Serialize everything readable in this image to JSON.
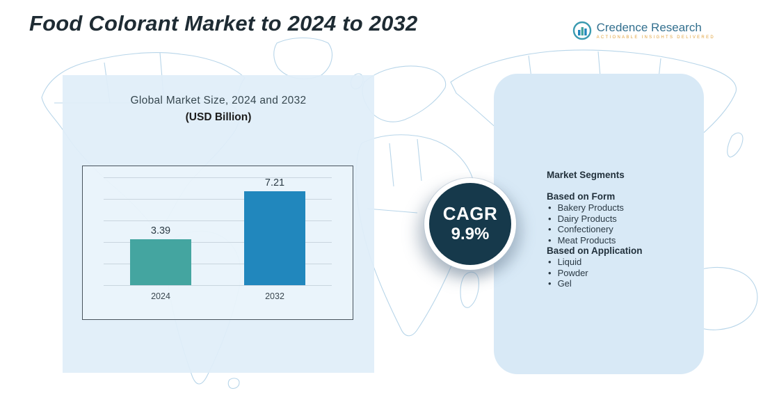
{
  "header": {
    "title": "Food Colorant Market to 2024 to 2032"
  },
  "logo": {
    "name": "Credence Research",
    "tagline": "Actionable Insights Delivered"
  },
  "chart_panel": {
    "title_line1": "Global Market Size, 2024 and 2032",
    "title_line2": "(USD Billion)"
  },
  "chart_data": {
    "type": "bar",
    "title": "Global Market Size, 2024 and 2032 (USD Billion)",
    "categories": [
      "2024",
      "2032"
    ],
    "values": [
      3.39,
      7.21
    ],
    "labels": [
      "3.39",
      "7.21"
    ],
    "xlabel": "",
    "ylabel": "",
    "ylim": [
      0,
      8
    ],
    "grid": true,
    "legend": false,
    "bar_colors": [
      "#44a5a0",
      "#2187bd"
    ]
  },
  "cagr": {
    "label": "CAGR",
    "value": "9.9%"
  },
  "segments": {
    "title": "Market Segments",
    "groups": [
      {
        "heading": "Based on Form",
        "items": [
          "Bakery Products",
          "Dairy Products",
          "Confectionery",
          "Meat Products"
        ]
      },
      {
        "heading": "Based on Application",
        "items": [
          "Liquid",
          "Powder",
          "Gel"
        ]
      }
    ]
  },
  "colors": {
    "teal_bar": "#44a5a0",
    "blue_bar": "#2187bd",
    "dark_navy": "#16394b",
    "panel_blue": "#d8e9f6",
    "map_line": "#b7d5e9",
    "logo_blue": "#33708f",
    "tagline_orange": "#e0a23c"
  }
}
